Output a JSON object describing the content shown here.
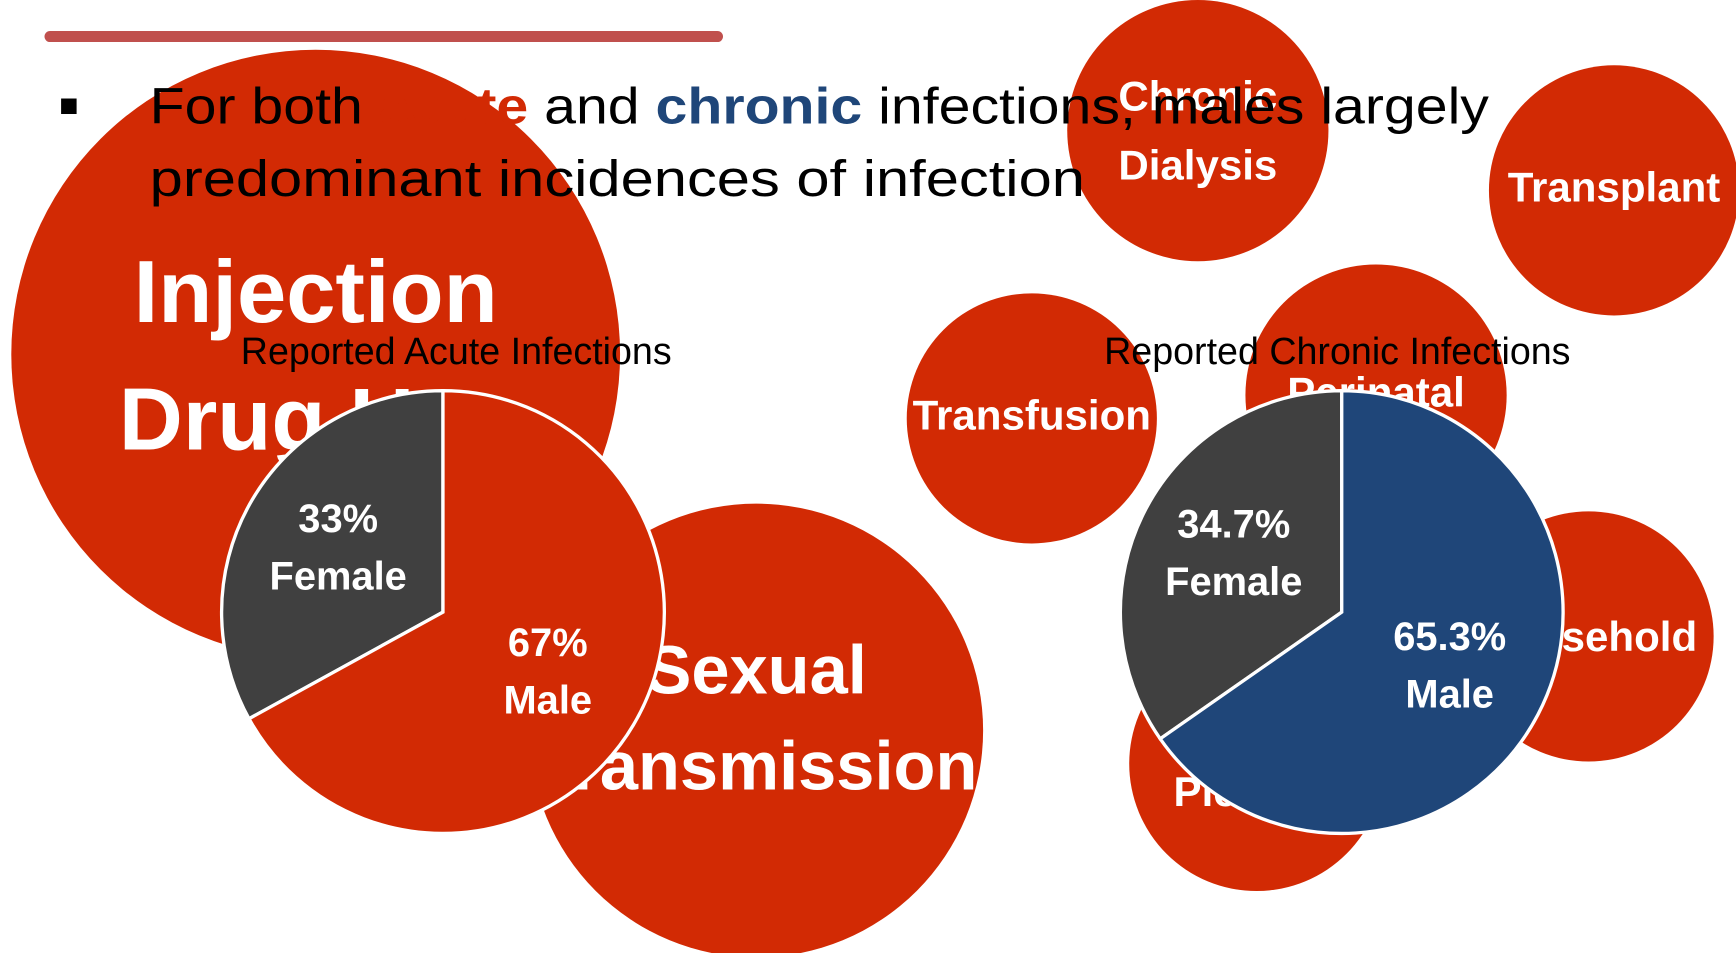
{
  "bullet": {
    "line1": [
      "For both ",
      "acute",
      " and ",
      "chronic",
      " infections, males largely"
    ],
    "line2": "predominant incidences of infection"
  },
  "bubbles": [
    {
      "lines": [
        "Injection",
        "Drug Use"
      ]
    },
    {
      "lines": [
        "Chronic",
        "Dialysis"
      ]
    },
    {
      "lines": [
        "Transplant"
      ]
    },
    {
      "lines": [
        "Transfusion"
      ]
    },
    {
      "lines": [
        "Perinatal"
      ]
    },
    {
      "lines": [
        "Household"
      ]
    },
    {
      "lines": [
        "Piercing"
      ]
    },
    {
      "lines": [
        "Sexual",
        "Transmission"
      ]
    }
  ],
  "chart_data": [
    {
      "type": "pie",
      "title": "Reported Acute Infections",
      "categories": [
        "Female",
        "Male"
      ],
      "values": [
        33,
        67
      ],
      "value_labels": [
        "33%",
        "67%"
      ],
      "colors": [
        "#404040",
        "#d22a04"
      ]
    },
    {
      "type": "pie",
      "title": "Reported Chronic Infections",
      "categories": [
        "Female",
        "Male"
      ],
      "values": [
        34.7,
        65.3
      ],
      "value_labels": [
        "34.7%",
        "65.3%"
      ],
      "colors": [
        "#404040",
        "#1f4679"
      ]
    }
  ]
}
